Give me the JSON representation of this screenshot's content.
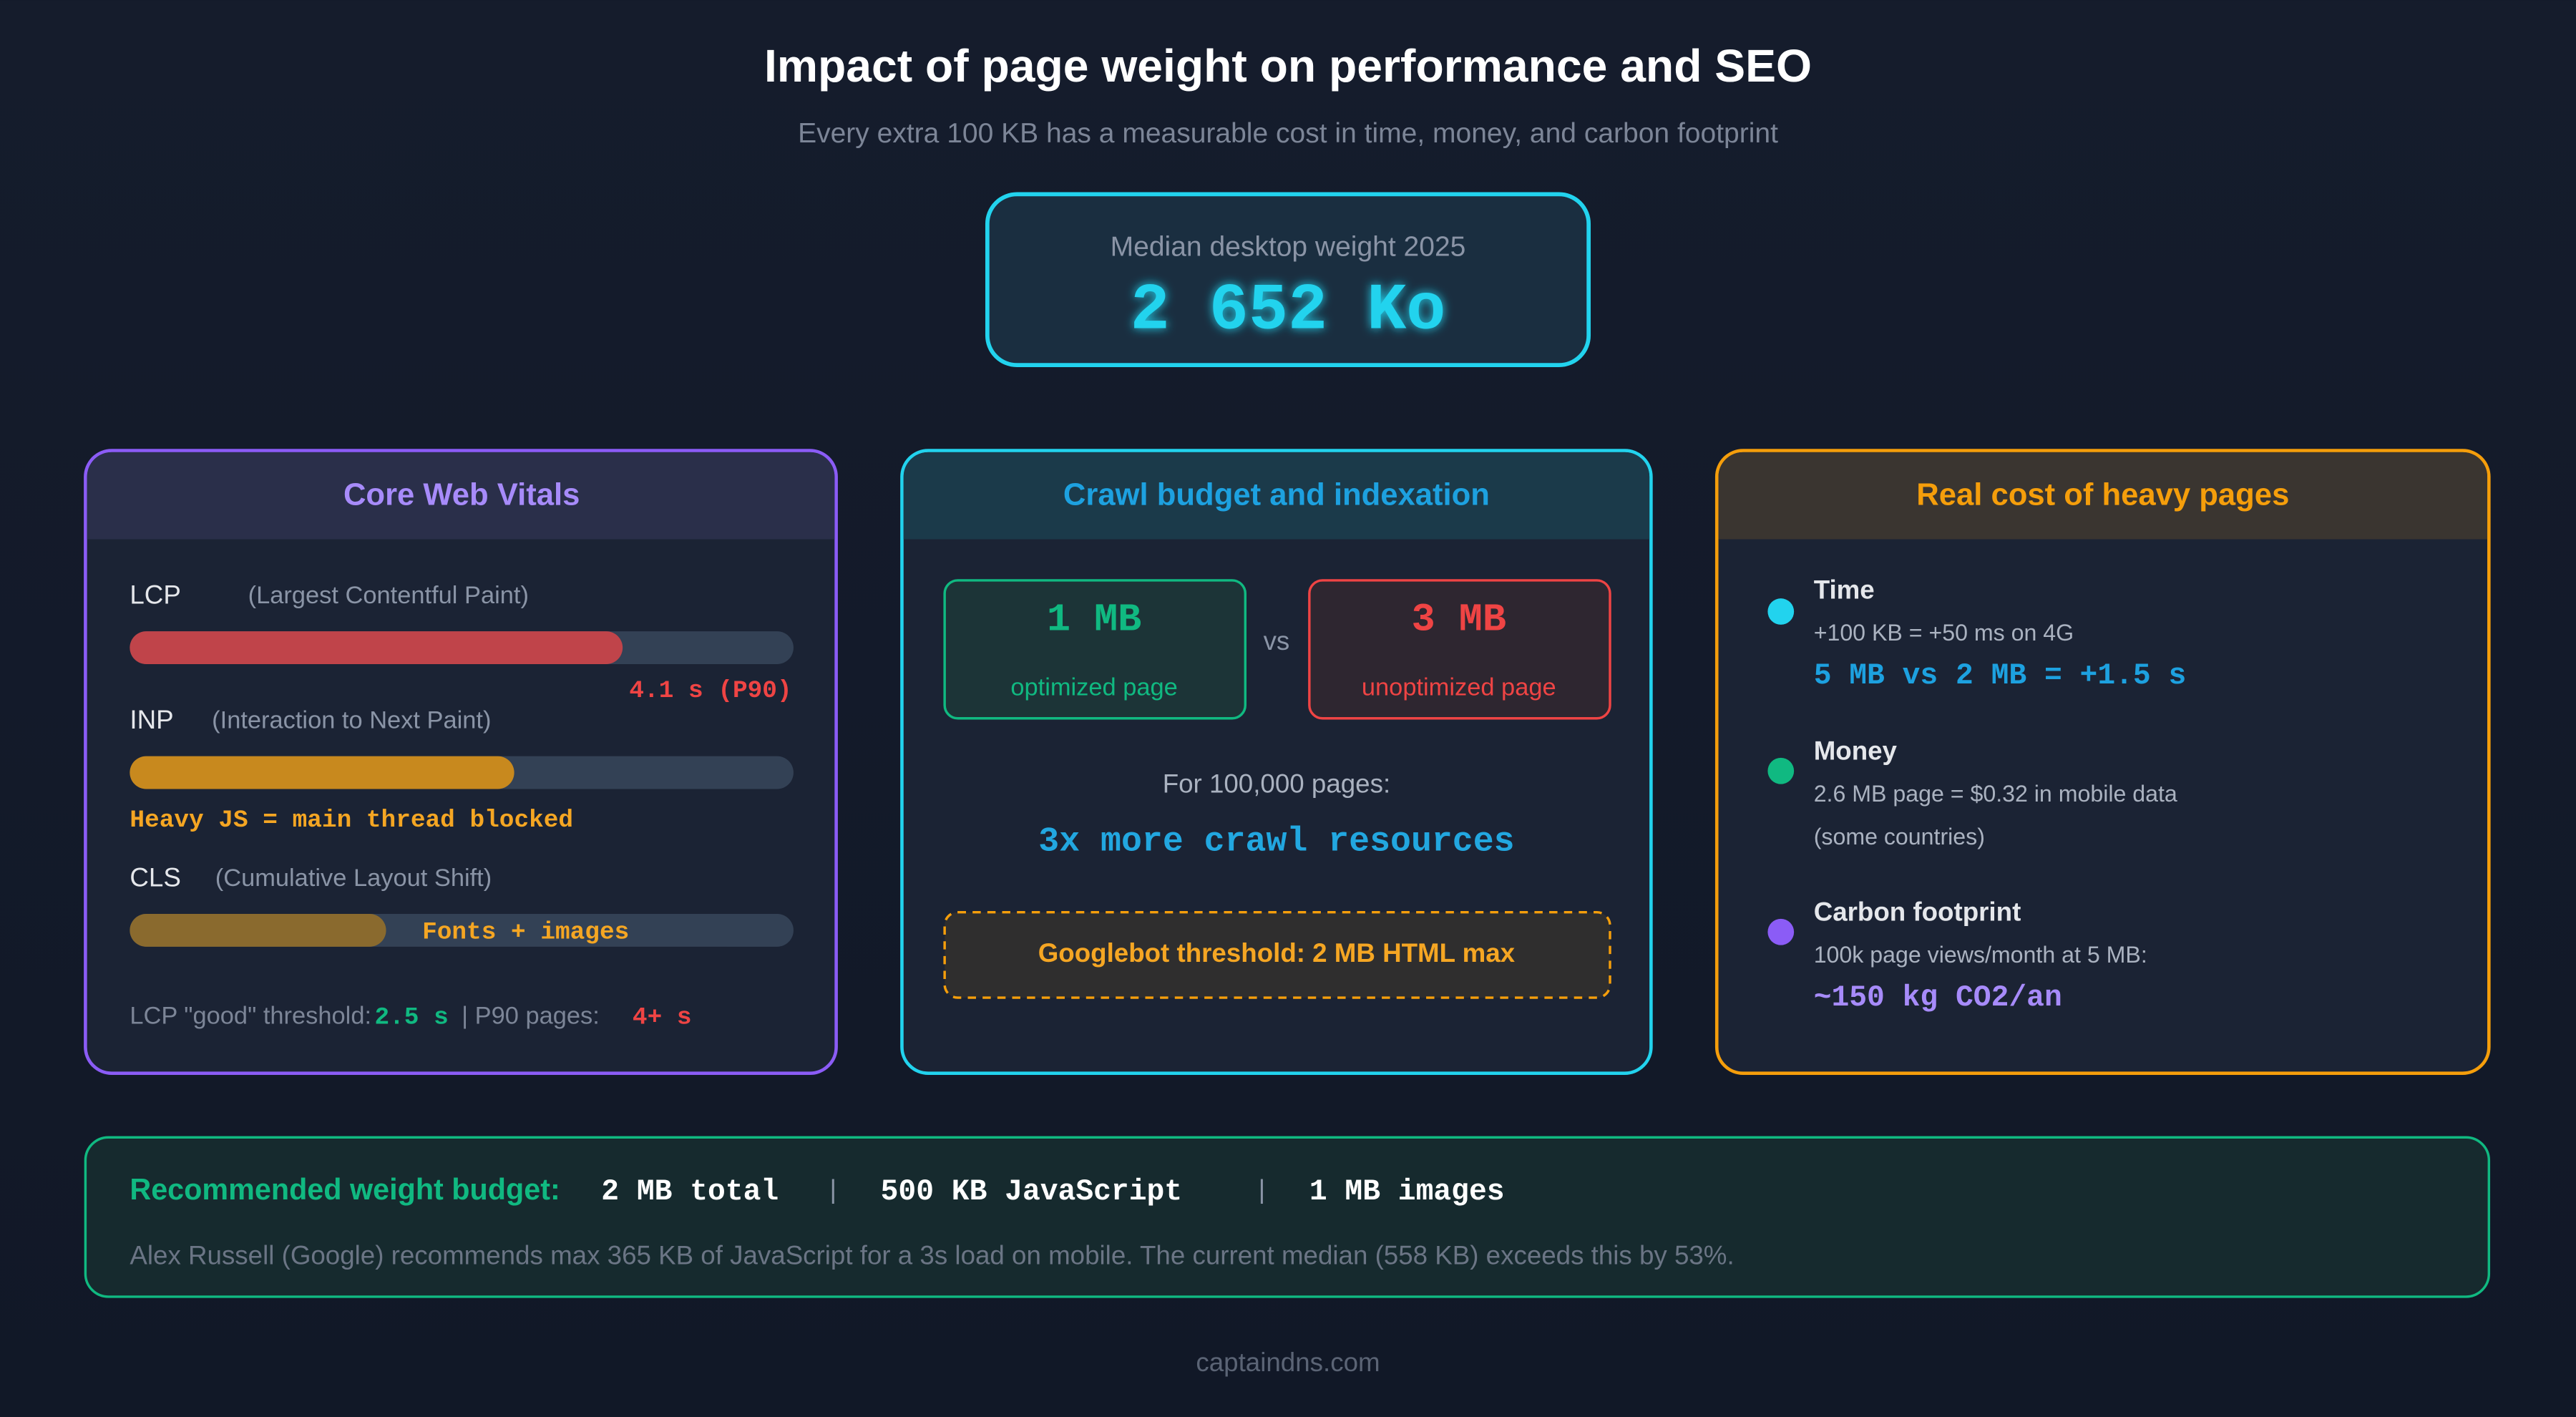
{
  "header": {
    "title": "Impact of page weight on performance and SEO",
    "subtitle": "Every extra 100 KB has a measurable cost in time, money, and carbon footprint"
  },
  "hero": {
    "label": "Median desktop weight 2025",
    "value": "2 652 Ko"
  },
  "cards": [
    {
      "title": "Core Web Vitals",
      "metrics": [
        {
          "name": "LCP",
          "desc": "(Largest Contentful Paint)",
          "note": "4.1 s (P90)"
        },
        {
          "name": "INP",
          "desc": "(Interaction to Next Paint)",
          "note": "Heavy JS = main thread blocked"
        },
        {
          "name": "CLS",
          "desc": "(Cumulative Layout Shift)",
          "note": "Fonts + images"
        }
      ],
      "footer": [
        "LCP \"good\" threshold:",
        "2.5 s",
        "| P90 pages:",
        "4+ s"
      ]
    },
    {
      "title": "Crawl budget and indexation",
      "compare": [
        {
          "value": "1 MB",
          "label": "optimized page"
        },
        {
          "value": "3 MB",
          "label": "unoptimized page"
        }
      ],
      "vs": "vs",
      "context": "For 100,000 pages:",
      "highlight": "3x more crawl resources",
      "threshold": "Googlebot threshold: 2 MB HTML max"
    },
    {
      "title": "Real cost of heavy pages",
      "items": [
        {
          "title": "Time",
          "lines": [
            "+100 KB = +50 ms on 4G"
          ],
          "highlight": "5 MB vs 2 MB = +1.5 s"
        },
        {
          "title": "Money",
          "lines": [
            "2.6 MB page = $0.32 in mobile data",
            "(some countries)"
          ]
        },
        {
          "title": "Carbon footprint",
          "lines": [
            "100k page views/month at 5 MB:"
          ],
          "highlight": "~150 kg CO2/an"
        }
      ]
    }
  ],
  "budget": {
    "label": "Recommended weight budget:",
    "items": [
      "2 MB total",
      "500 KB JavaScript",
      "1 MB images"
    ],
    "separator": "|",
    "note": "Alex Russell (Google) recommends max 365 KB of JavaScript for a 3s load on mobile. The current median (558 KB) exceeds this by 53%."
  },
  "footer": "captaindns.com"
}
